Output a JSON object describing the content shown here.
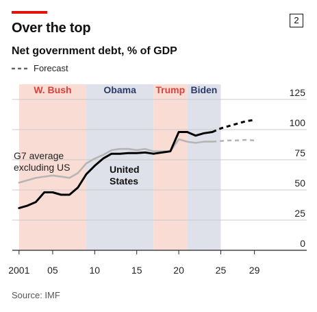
{
  "header": {
    "chart_number": "2",
    "title": "Over the top",
    "subtitle": "Net government debt, % of GDP"
  },
  "legend": {
    "forecast_label": "Forecast"
  },
  "source": "Source: IMF",
  "colors": {
    "accent": "#e3120b",
    "us_line": "#000000",
    "g7_line": "#b5b5b5",
    "republican_band": "#f9dcd3",
    "democrat_band": "#dfe1ea",
    "republican_text": "#d9413a",
    "democrat_text": "#2b3a67"
  },
  "chart_data": {
    "type": "line",
    "title": "Net government debt, % of GDP",
    "xlabel": "",
    "ylabel": "",
    "xlim": [
      2000.2,
      2030.5
    ],
    "ylim": [
      0,
      125
    ],
    "x_ticks": [
      {
        "value": 2001,
        "label": "2001"
      },
      {
        "value": 2005,
        "label": "05"
      },
      {
        "value": 2010,
        "label": "10"
      },
      {
        "value": 2015,
        "label": "15"
      },
      {
        "value": 2020,
        "label": "20"
      },
      {
        "value": 2025,
        "label": "25"
      },
      {
        "value": 2029,
        "label": "29"
      }
    ],
    "y_ticks": [
      0,
      25,
      50,
      75,
      100,
      125
    ],
    "grid": true,
    "forecast_start": 2024,
    "periods": [
      {
        "label": "W. Bush",
        "start": 2001,
        "end": 2009,
        "party": "republican"
      },
      {
        "label": "Obama",
        "start": 2009,
        "end": 2017,
        "party": "democrat"
      },
      {
        "label": "Trump",
        "start": 2017,
        "end": 2021,
        "party": "republican"
      },
      {
        "label": "Biden",
        "start": 2021,
        "end": 2025,
        "party": "democrat"
      }
    ],
    "series": [
      {
        "name": "United States",
        "x": [
          2001,
          2002,
          2003,
          2004,
          2005,
          2006,
          2007,
          2008,
          2009,
          2010,
          2011,
          2012,
          2013,
          2014,
          2015,
          2016,
          2017,
          2018,
          2019,
          2020,
          2021,
          2022,
          2023,
          2024,
          2025,
          2026,
          2027,
          2028,
          2029
        ],
        "values": [
          35,
          37,
          40,
          48,
          48,
          46,
          46,
          52,
          63,
          70,
          76,
          80,
          80,
          80.5,
          80.5,
          81,
          80,
          81,
          82,
          98,
          98,
          95,
          97,
          98,
          101,
          103,
          105,
          107,
          108
        ]
      },
      {
        "name": "G7 average excluding US",
        "x": [
          2001,
          2002,
          2003,
          2004,
          2005,
          2006,
          2007,
          2008,
          2009,
          2010,
          2011,
          2012,
          2013,
          2014,
          2015,
          2016,
          2017,
          2018,
          2019,
          2020,
          2021,
          2022,
          2023,
          2024,
          2025,
          2026,
          2027,
          2028,
          2029
        ],
        "values": [
          56,
          58,
          60,
          61,
          62,
          61,
          60,
          64,
          72,
          76,
          79,
          83,
          84,
          84,
          83,
          84,
          82,
          82,
          82,
          92,
          90,
          89,
          90,
          90,
          90.5,
          91,
          91,
          91.5,
          91
        ]
      }
    ],
    "annotations": [
      {
        "text_lines": [
          "G7 average",
          "excluding US"
        ],
        "series": "G7 average excluding US"
      },
      {
        "text_lines": [
          "United",
          "States"
        ],
        "series": "United States"
      }
    ]
  }
}
